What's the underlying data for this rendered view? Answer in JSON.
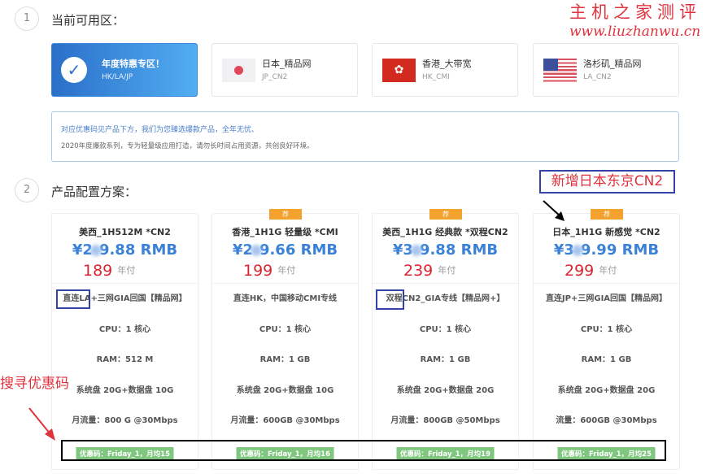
{
  "step1": {
    "num": "1",
    "title": "当前可用区："
  },
  "zones": [
    {
      "name": "年度特惠专区！",
      "code": "HK/LA/JP",
      "icon": "check-icon",
      "active": true
    },
    {
      "name": "日本_精品网",
      "code": "JP_CN2",
      "icon": "japan-flag-icon"
    },
    {
      "name": "香港_大带宽",
      "code": "HK_CMI",
      "icon": "hongkong-flag-icon"
    },
    {
      "name": "洛杉矶_精品网",
      "code": "LA_CN2",
      "icon": "usa-flag-icon"
    }
  ],
  "info": {
    "line1": "对应优惠码见产品下方，我们为您臻选爆款产品，全年无忧、",
    "line2": "2020年度爆款系列，专为轻量级应用打造，请勿长时间占用资源，共创良好环境。"
  },
  "step2": {
    "num": "2",
    "title": "产品配置方案："
  },
  "products": [
    {
      "badge": "",
      "title": "美西_1H512M *CN2",
      "price_pre": "¥2",
      "price_post": "9.88 RMB",
      "year": "189",
      "year_label": "年付",
      "features": [
        "直连LA+三网GIA回国【精品网】",
        "CPU：1 核心",
        "RAM：512 M",
        "系统盘 20G+数据盘 10G",
        "月流量：800 G @30Mbps"
      ],
      "coupon": "优惠码：Friday_1，月均15"
    },
    {
      "badge": "荐",
      "title": "香港_1H1G 轻量级 *CMI",
      "price_pre": "¥2",
      "price_post": "9.66 RMB",
      "year": "199",
      "year_label": "年付",
      "features": [
        "直连HK，中国移动CMI专线",
        "CPU：1 核心",
        "RAM：1 GB",
        "系统盘 20G+数据盘 10G",
        "月流量：600GB @30Mbps"
      ],
      "coupon": "优惠码：Friday_1，月均16"
    },
    {
      "badge": "荐",
      "title": "美西_1H1G 经典款 *双程CN2",
      "price_pre": "¥3",
      "price_post": "9.88 RMB",
      "year": "239",
      "year_label": "年付",
      "features": [
        "双程CN2_GIA专线【精品网+】",
        "CPU：1 核心",
        "RAM：1 GB",
        "系统盘 20G+数据盘 20G",
        "月流量：800GB @50Mbps"
      ],
      "coupon": "优惠码：Friday_1，月均19"
    },
    {
      "badge": "荐",
      "title": "日本_1H1G 新感觉 *CN2",
      "price_pre": "¥3",
      "price_post": "9.99 RMB",
      "year": "299",
      "year_label": "年付",
      "features": [
        "直连JP+三网GIA回国【精品网】",
        "CPU：1 核心",
        "RAM：1 GB",
        "系统盘 20G+数据盘 20G",
        "流量：600GB @30Mbps"
      ],
      "coupon": "优惠码：Friday_1，月均25"
    }
  ],
  "annotations": {
    "new_jp": "新增日本东京CN2",
    "search_coupon": "搜寻优惠码",
    "watermark1": "主机之家测评",
    "watermark2": "www.liuzhanwu.cn"
  }
}
